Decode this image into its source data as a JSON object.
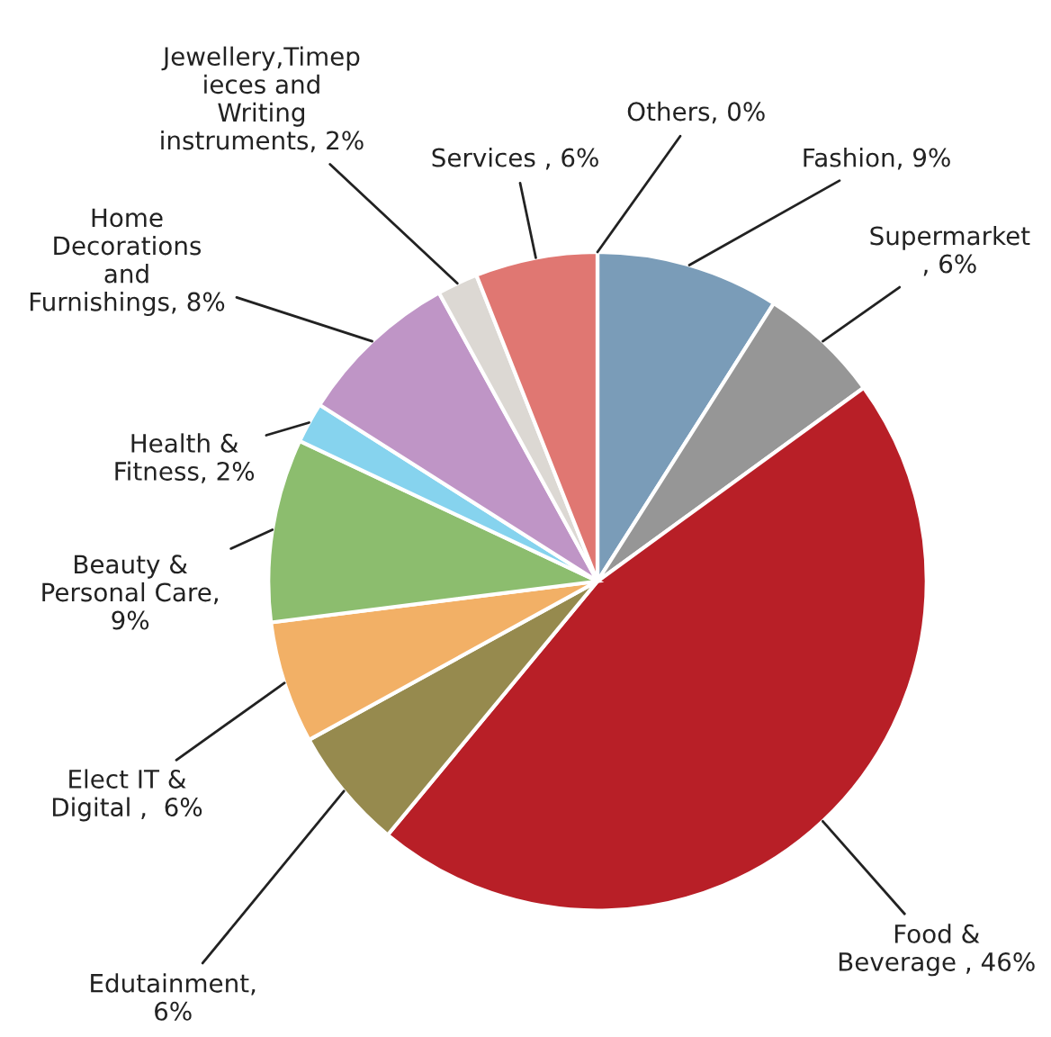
{
  "chart_data": {
    "type": "pie",
    "categories": [
      "Fashion",
      "Supermarket\n",
      "Food &\nBeverage ",
      "Edutainment",
      "Elect IT &\nDigital ",
      "Beauty &\nPersonal Care",
      "Health &\nFitness",
      "Home\nDecorations\nand\nFurnishings",
      "Jewellery,Timep\nieces and\nWriting\ninstruments",
      "Services ",
      "Others"
    ],
    "values": [
      9,
      6,
      46,
      6,
      6,
      9,
      2,
      8,
      2,
      6,
      0
    ],
    "value_labels": [
      ", 9%",
      ", 6%",
      ", 46%",
      ",\n6%",
      ",  6%",
      ",\n9%",
      ", 2%",
      ", 8%",
      ", 2%",
      ", 6%",
      ", 0%"
    ],
    "colors": [
      "#7a9cb8",
      "#969696",
      "#b81f27",
      "#968a4e",
      "#f2b066",
      "#8cbd6e",
      "#86d3ee",
      "#bf95c6",
      "#dcd8d3",
      "#e07772",
      "#4472c4"
    ],
    "legend": false
  }
}
